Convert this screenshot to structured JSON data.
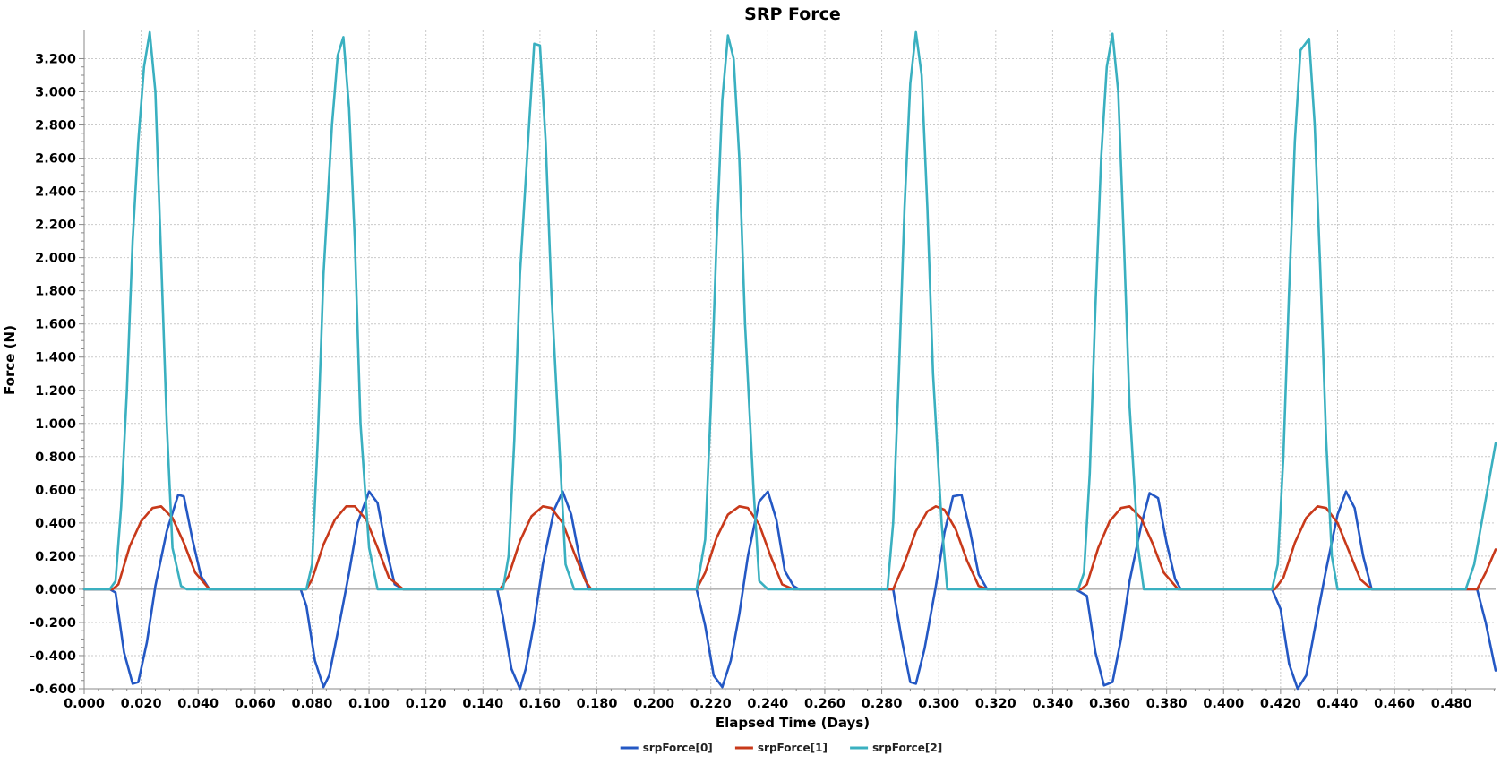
{
  "chart_data": {
    "type": "line",
    "title": "SRP Force",
    "xlabel": "Elapsed Time (Days)",
    "ylabel": "Force (N)",
    "xlim": [
      0.0,
      0.4955
    ],
    "ylim": [
      -0.6,
      3.37
    ],
    "x_ticks": [
      "0.000",
      "0.020",
      "0.040",
      "0.060",
      "0.080",
      "0.100",
      "0.120",
      "0.140",
      "0.160",
      "0.180",
      "0.200",
      "0.220",
      "0.240",
      "0.260",
      "0.280",
      "0.300",
      "0.320",
      "0.340",
      "0.360",
      "0.380",
      "0.400",
      "0.420",
      "0.440",
      "0.460",
      "0.480"
    ],
    "y_ticks": [
      "-0.600",
      "-0.400",
      "-0.200",
      "0.000",
      "0.200",
      "0.400",
      "0.600",
      "0.800",
      "1.000",
      "1.200",
      "1.400",
      "1.600",
      "1.800",
      "2.000",
      "2.200",
      "2.400",
      "2.600",
      "2.800",
      "3.000",
      "3.200"
    ],
    "grid": true,
    "legend_position": "bottom-center",
    "series": [
      {
        "name": "srpForce[0]",
        "color": "#2458c4",
        "points": [
          [
            0.0,
            0
          ],
          [
            0.009,
            0
          ],
          [
            0.011,
            -0.02
          ],
          [
            0.014,
            -0.38
          ],
          [
            0.017,
            -0.57
          ],
          [
            0.019,
            -0.56
          ],
          [
            0.022,
            -0.32
          ],
          [
            0.025,
            0.02
          ],
          [
            0.029,
            0.35
          ],
          [
            0.033,
            0.57
          ],
          [
            0.035,
            0.56
          ],
          [
            0.038,
            0.3
          ],
          [
            0.041,
            0.08
          ],
          [
            0.044,
            0
          ],
          [
            0.076,
            0
          ],
          [
            0.078,
            -0.1
          ],
          [
            0.081,
            -0.43
          ],
          [
            0.084,
            -0.59
          ],
          [
            0.086,
            -0.52
          ],
          [
            0.089,
            -0.26
          ],
          [
            0.093,
            0.1
          ],
          [
            0.096,
            0.4
          ],
          [
            0.1,
            0.59
          ],
          [
            0.103,
            0.52
          ],
          [
            0.106,
            0.25
          ],
          [
            0.109,
            0.03
          ],
          [
            0.112,
            0
          ],
          [
            0.145,
            0
          ],
          [
            0.147,
            -0.17
          ],
          [
            0.15,
            -0.48
          ],
          [
            0.153,
            -0.6
          ],
          [
            0.155,
            -0.48
          ],
          [
            0.158,
            -0.2
          ],
          [
            0.161,
            0.15
          ],
          [
            0.165,
            0.48
          ],
          [
            0.168,
            0.59
          ],
          [
            0.171,
            0.45
          ],
          [
            0.174,
            0.18
          ],
          [
            0.177,
            0
          ],
          [
            0.215,
            0
          ],
          [
            0.218,
            -0.22
          ],
          [
            0.221,
            -0.52
          ],
          [
            0.224,
            -0.59
          ],
          [
            0.227,
            -0.43
          ],
          [
            0.23,
            -0.15
          ],
          [
            0.233,
            0.2
          ],
          [
            0.237,
            0.53
          ],
          [
            0.24,
            0.59
          ],
          [
            0.243,
            0.42
          ],
          [
            0.246,
            0.11
          ],
          [
            0.249,
            0.02
          ],
          [
            0.251,
            0
          ],
          [
            0.284,
            0
          ],
          [
            0.287,
            -0.3
          ],
          [
            0.29,
            -0.56
          ],
          [
            0.292,
            -0.57
          ],
          [
            0.295,
            -0.36
          ],
          [
            0.299,
            0.02
          ],
          [
            0.302,
            0.34
          ],
          [
            0.305,
            0.56
          ],
          [
            0.308,
            0.57
          ],
          [
            0.311,
            0.35
          ],
          [
            0.314,
            0.09
          ],
          [
            0.317,
            0
          ],
          [
            0.348,
            0
          ],
          [
            0.352,
            -0.04
          ],
          [
            0.355,
            -0.38
          ],
          [
            0.358,
            -0.58
          ],
          [
            0.361,
            -0.56
          ],
          [
            0.364,
            -0.3
          ],
          [
            0.367,
            0.05
          ],
          [
            0.371,
            0.38
          ],
          [
            0.374,
            0.58
          ],
          [
            0.377,
            0.55
          ],
          [
            0.38,
            0.28
          ],
          [
            0.383,
            0.06
          ],
          [
            0.385,
            0
          ],
          [
            0.417,
            0
          ],
          [
            0.42,
            -0.12
          ],
          [
            0.423,
            -0.45
          ],
          [
            0.426,
            -0.6
          ],
          [
            0.429,
            -0.52
          ],
          [
            0.432,
            -0.24
          ],
          [
            0.436,
            0.12
          ],
          [
            0.44,
            0.45
          ],
          [
            0.443,
            0.59
          ],
          [
            0.446,
            0.49
          ],
          [
            0.449,
            0.2
          ],
          [
            0.452,
            0
          ],
          [
            0.489,
            0
          ],
          [
            0.492,
            -0.2
          ],
          [
            0.4955,
            -0.49
          ]
        ]
      },
      {
        "name": "srpForce[1]",
        "color": "#c8391a",
        "points": [
          [
            0.0,
            0
          ],
          [
            0.01,
            0
          ],
          [
            0.012,
            0.03
          ],
          [
            0.016,
            0.26
          ],
          [
            0.02,
            0.41
          ],
          [
            0.024,
            0.49
          ],
          [
            0.027,
            0.5
          ],
          [
            0.031,
            0.43
          ],
          [
            0.035,
            0.28
          ],
          [
            0.039,
            0.1
          ],
          [
            0.044,
            0
          ],
          [
            0.078,
            0
          ],
          [
            0.08,
            0.06
          ],
          [
            0.084,
            0.27
          ],
          [
            0.088,
            0.42
          ],
          [
            0.092,
            0.5
          ],
          [
            0.095,
            0.5
          ],
          [
            0.099,
            0.42
          ],
          [
            0.103,
            0.25
          ],
          [
            0.107,
            0.07
          ],
          [
            0.112,
            0
          ],
          [
            0.146,
            0
          ],
          [
            0.149,
            0.08
          ],
          [
            0.153,
            0.29
          ],
          [
            0.157,
            0.44
          ],
          [
            0.161,
            0.5
          ],
          [
            0.164,
            0.49
          ],
          [
            0.168,
            0.4
          ],
          [
            0.172,
            0.22
          ],
          [
            0.176,
            0.05
          ],
          [
            0.178,
            0
          ],
          [
            0.215,
            0
          ],
          [
            0.218,
            0.1
          ],
          [
            0.222,
            0.31
          ],
          [
            0.226,
            0.45
          ],
          [
            0.23,
            0.5
          ],
          [
            0.233,
            0.49
          ],
          [
            0.237,
            0.39
          ],
          [
            0.241,
            0.2
          ],
          [
            0.245,
            0.03
          ],
          [
            0.249,
            0
          ],
          [
            0.284,
            0
          ],
          [
            0.288,
            0.16
          ],
          [
            0.292,
            0.35
          ],
          [
            0.296,
            0.47
          ],
          [
            0.299,
            0.5
          ],
          [
            0.302,
            0.48
          ],
          [
            0.306,
            0.36
          ],
          [
            0.31,
            0.17
          ],
          [
            0.314,
            0.02
          ],
          [
            0.317,
            0
          ],
          [
            0.35,
            0
          ],
          [
            0.352,
            0.03
          ],
          [
            0.356,
            0.25
          ],
          [
            0.36,
            0.41
          ],
          [
            0.364,
            0.49
          ],
          [
            0.367,
            0.5
          ],
          [
            0.371,
            0.43
          ],
          [
            0.375,
            0.28
          ],
          [
            0.379,
            0.1
          ],
          [
            0.384,
            0
          ],
          [
            0.418,
            0
          ],
          [
            0.421,
            0.07
          ],
          [
            0.425,
            0.28
          ],
          [
            0.429,
            0.43
          ],
          [
            0.433,
            0.5
          ],
          [
            0.436,
            0.49
          ],
          [
            0.44,
            0.4
          ],
          [
            0.444,
            0.23
          ],
          [
            0.448,
            0.06
          ],
          [
            0.452,
            0
          ],
          [
            0.489,
            0
          ],
          [
            0.492,
            0.1
          ],
          [
            0.4955,
            0.24
          ]
        ]
      },
      {
        "name": "srpForce[2]",
        "color": "#3ab0c0",
        "points": [
          [
            0.0,
            0
          ],
          [
            0.009,
            0
          ],
          [
            0.011,
            0.05
          ],
          [
            0.013,
            0.5
          ],
          [
            0.015,
            1.2
          ],
          [
            0.017,
            2.1
          ],
          [
            0.019,
            2.7
          ],
          [
            0.021,
            3.15
          ],
          [
            0.023,
            3.36
          ],
          [
            0.025,
            3.0
          ],
          [
            0.027,
            2.0
          ],
          [
            0.029,
            1.0
          ],
          [
            0.031,
            0.25
          ],
          [
            0.034,
            0.02
          ],
          [
            0.036,
            0
          ],
          [
            0.078,
            0
          ],
          [
            0.08,
            0.15
          ],
          [
            0.082,
            0.9
          ],
          [
            0.084,
            1.9
          ],
          [
            0.087,
            2.8
          ],
          [
            0.089,
            3.22
          ],
          [
            0.091,
            3.33
          ],
          [
            0.093,
            2.9
          ],
          [
            0.095,
            2.1
          ],
          [
            0.097,
            1.0
          ],
          [
            0.1,
            0.25
          ],
          [
            0.103,
            0
          ],
          [
            0.147,
            0
          ],
          [
            0.149,
            0.2
          ],
          [
            0.151,
            0.9
          ],
          [
            0.153,
            1.9
          ],
          [
            0.156,
            2.75
          ],
          [
            0.158,
            3.29
          ],
          [
            0.16,
            3.28
          ],
          [
            0.162,
            2.7
          ],
          [
            0.164,
            1.8
          ],
          [
            0.167,
            0.8
          ],
          [
            0.169,
            0.15
          ],
          [
            0.172,
            0
          ],
          [
            0.215,
            0
          ],
          [
            0.218,
            0.3
          ],
          [
            0.22,
            1.1
          ],
          [
            0.222,
            2.1
          ],
          [
            0.224,
            2.95
          ],
          [
            0.226,
            3.34
          ],
          [
            0.228,
            3.2
          ],
          [
            0.23,
            2.6
          ],
          [
            0.232,
            1.6
          ],
          [
            0.235,
            0.6
          ],
          [
            0.237,
            0.05
          ],
          [
            0.24,
            0
          ],
          [
            0.282,
            0
          ],
          [
            0.284,
            0.4
          ],
          [
            0.286,
            1.3
          ],
          [
            0.288,
            2.3
          ],
          [
            0.29,
            3.05
          ],
          [
            0.292,
            3.36
          ],
          [
            0.294,
            3.1
          ],
          [
            0.296,
            2.3
          ],
          [
            0.298,
            1.3
          ],
          [
            0.301,
            0.4
          ],
          [
            0.303,
            0
          ],
          [
            0.349,
            0
          ],
          [
            0.351,
            0.1
          ],
          [
            0.353,
            0.7
          ],
          [
            0.355,
            1.7
          ],
          [
            0.357,
            2.6
          ],
          [
            0.359,
            3.15
          ],
          [
            0.361,
            3.35
          ],
          [
            0.363,
            3.0
          ],
          [
            0.365,
            2.1
          ],
          [
            0.367,
            1.1
          ],
          [
            0.37,
            0.25
          ],
          [
            0.372,
            0
          ],
          [
            0.417,
            0
          ],
          [
            0.419,
            0.15
          ],
          [
            0.421,
            0.8
          ],
          [
            0.423,
            1.8
          ],
          [
            0.425,
            2.7
          ],
          [
            0.427,
            3.25
          ],
          [
            0.43,
            3.32
          ],
          [
            0.432,
            2.8
          ],
          [
            0.434,
            1.9
          ],
          [
            0.436,
            0.9
          ],
          [
            0.438,
            0.2
          ],
          [
            0.44,
            0
          ],
          [
            0.485,
            0
          ],
          [
            0.488,
            0.15
          ],
          [
            0.4955,
            0.88
          ]
        ]
      }
    ]
  }
}
